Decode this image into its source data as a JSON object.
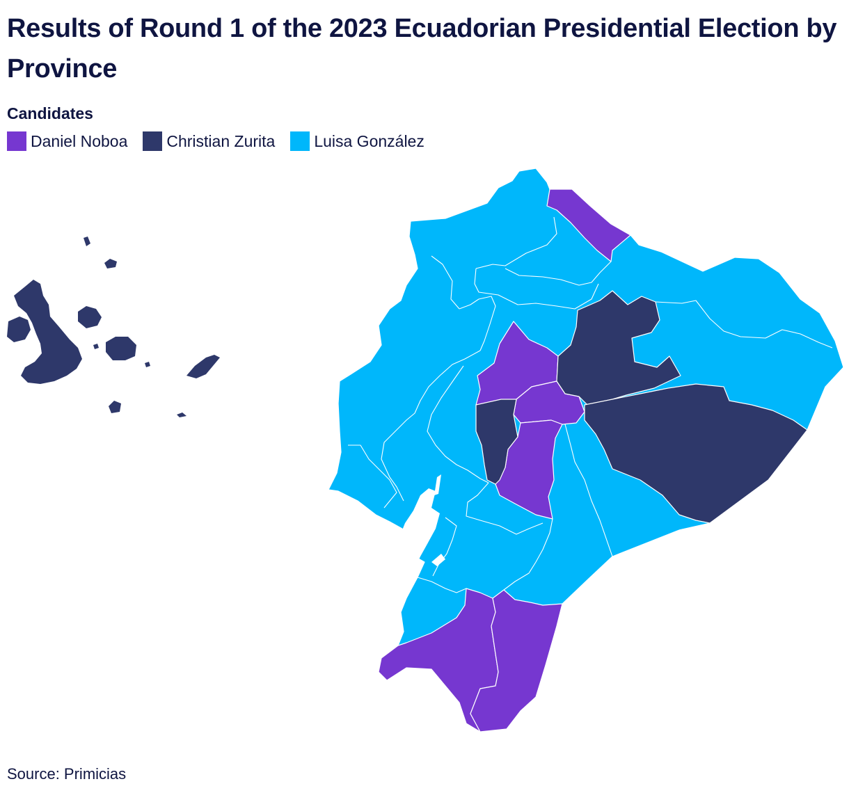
{
  "title": "Results of Round 1 of the 2023 Ecuadorian Presidential Election by Province",
  "legend": {
    "heading": "Candidates",
    "items": [
      {
        "label": "Daniel Noboa",
        "color": "#7637d0"
      },
      {
        "label": "Christian Zurita",
        "color": "#2e386a"
      },
      {
        "label": "Luisa González",
        "color": "#00b7fb"
      }
    ]
  },
  "source": "Source: Primicias",
  "colors": {
    "noboa": "#7637d0",
    "zurita": "#2e386a",
    "gonzalez": "#00b7fb"
  }
}
